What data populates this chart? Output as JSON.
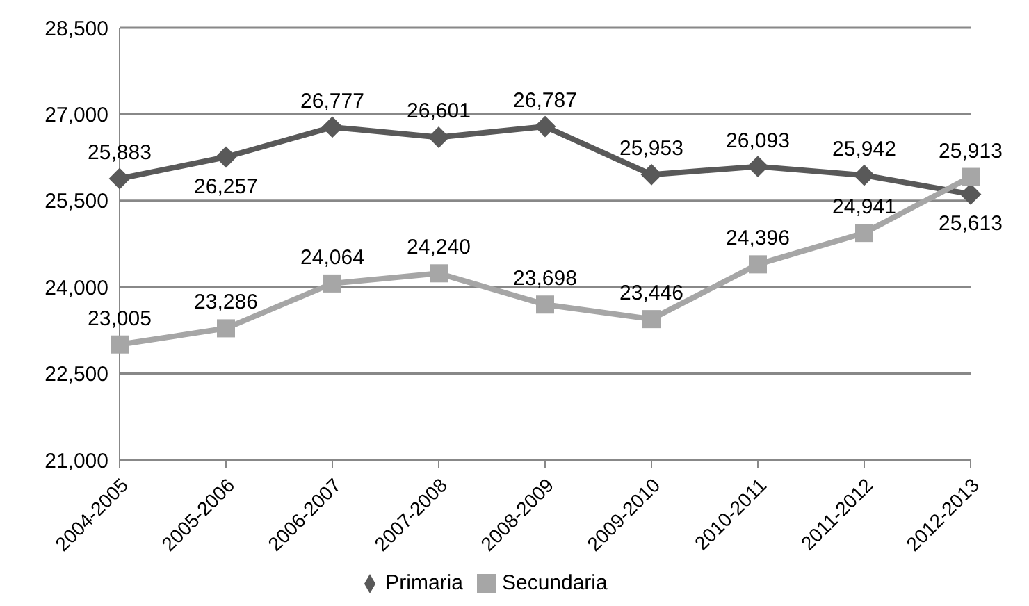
{
  "chart_data": {
    "type": "line",
    "categories": [
      "2004-2005",
      "2005-2006",
      "2006-2007",
      "2007-2008",
      "2008-2009",
      "2009-2010",
      "2010-2011",
      "2011-2012",
      "2012-2013"
    ],
    "series": [
      {
        "name": "Primaria",
        "color": "#595959",
        "marker": "diamond",
        "values": [
          25883,
          26257,
          26777,
          26601,
          26787,
          25953,
          26093,
          25942,
          25613
        ],
        "value_labels": [
          "25,883",
          "26,257",
          "26,777",
          "26,601",
          "26,787",
          "25,953",
          "26,093",
          "25,942",
          "25,613"
        ]
      },
      {
        "name": "Secundaria",
        "color": "#a6a6a6",
        "marker": "square",
        "values": [
          23005,
          23286,
          24064,
          24240,
          23698,
          23446,
          24396,
          24941,
          25913
        ],
        "value_labels": [
          "23,005",
          "23,286",
          "24,064",
          "24,240",
          "23,698",
          "23,446",
          "24,396",
          "24,941",
          "25,913"
        ]
      }
    ],
    "ylim": [
      21000,
      28500
    ],
    "yticks": [
      {
        "value": 21000,
        "label": "21,000"
      },
      {
        "value": 22500,
        "label": "22,500"
      },
      {
        "value": 24000,
        "label": "24,000"
      },
      {
        "value": 25500,
        "label": "25,500"
      },
      {
        "value": 27000,
        "label": "27,000"
      },
      {
        "value": 28500,
        "label": "28,500"
      }
    ],
    "grid": "y",
    "legend": "bottom",
    "line_style": "solid"
  }
}
